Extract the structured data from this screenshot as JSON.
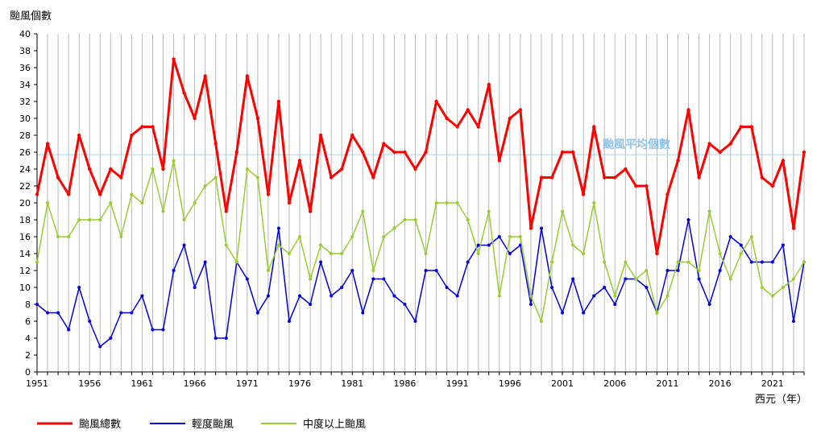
{
  "chart_data": {
    "type": "line",
    "ylabel": "颱風個數",
    "xlabel": "西元（年）",
    "ylim": [
      0,
      40
    ],
    "ytick_step": 2,
    "x_start": 1951,
    "x_end": 2024,
    "xticks": [
      1951,
      1956,
      1961,
      1966,
      1971,
      1976,
      1981,
      1986,
      1991,
      1996,
      2001,
      2006,
      2011,
      2016,
      2021
    ],
    "average": {
      "value": 25.7,
      "label": "颱風平均個數",
      "color": "#a8d0f0"
    },
    "series": [
      {
        "name": "颱風總數",
        "color": "#ff0000",
        "values": [
          21,
          27,
          23,
          21,
          28,
          24,
          21,
          24,
          23,
          28,
          29,
          29,
          24,
          37,
          33,
          30,
          35,
          27,
          19,
          26,
          35,
          30,
          21,
          32,
          20,
          25,
          19,
          28,
          23,
          24,
          28,
          26,
          23,
          27,
          26,
          26,
          24,
          26,
          32,
          30,
          29,
          31,
          29,
          34,
          25,
          30,
          31,
          17,
          23,
          23,
          26,
          26,
          21,
          29,
          23,
          23,
          24,
          22,
          22,
          14,
          21,
          25,
          31,
          23,
          27,
          26,
          27,
          29,
          29,
          23,
          22,
          25,
          17,
          26
        ]
      },
      {
        "name": "輕度颱風",
        "color": "#0000dd",
        "values": [
          8,
          7,
          7,
          5,
          10,
          6,
          3,
          4,
          7,
          7,
          9,
          5,
          5,
          12,
          15,
          10,
          13,
          4,
          4,
          13,
          11,
          7,
          9,
          17,
          6,
          9,
          8,
          13,
          9,
          10,
          12,
          7,
          11,
          11,
          9,
          8,
          6,
          12,
          12,
          10,
          9,
          13,
          15,
          15,
          16,
          14,
          15,
          8,
          17,
          10,
          7,
          11,
          7,
          9,
          10,
          8,
          11,
          11,
          10,
          7,
          12,
          12,
          18,
          11,
          8,
          12,
          16,
          15,
          13,
          13,
          13,
          15,
          6,
          13
        ]
      },
      {
        "name": "中度以上颱風",
        "color": "#99cc33",
        "values": [
          13,
          20,
          16,
          16,
          18,
          18,
          18,
          20,
          16,
          21,
          20,
          24,
          19,
          25,
          18,
          20,
          22,
          23,
          15,
          13,
          24,
          23,
          12,
          15,
          14,
          16,
          11,
          15,
          14,
          14,
          16,
          19,
          12,
          16,
          17,
          18,
          18,
          14,
          20,
          20,
          20,
          18,
          14,
          19,
          9,
          16,
          16,
          9,
          6,
          13,
          19,
          15,
          14,
          20,
          13,
          9,
          13,
          11,
          12,
          7,
          9,
          13,
          13,
          12,
          19,
          14,
          11,
          14,
          16,
          10,
          9,
          10,
          11,
          13
        ]
      }
    ],
    "legend_position": "bottom-left"
  }
}
